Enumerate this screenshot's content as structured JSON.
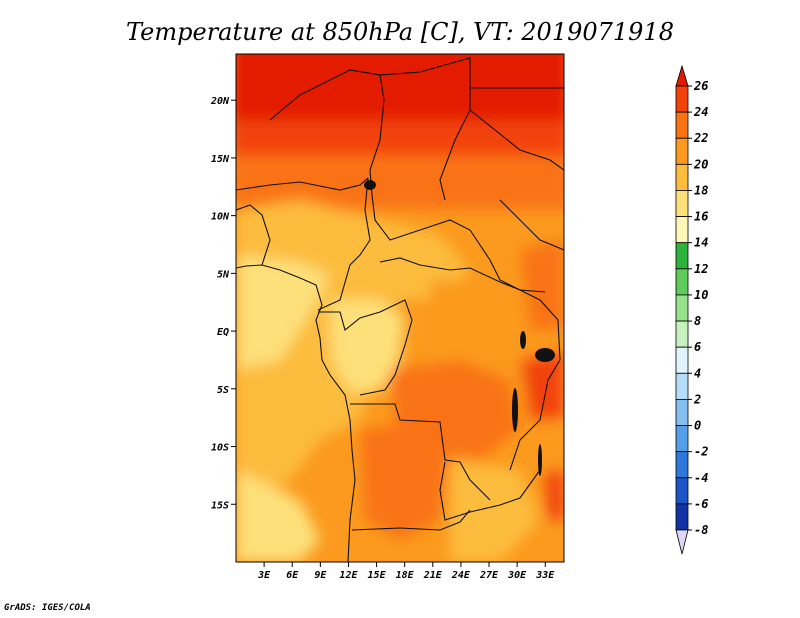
{
  "title": "Temperature at 850hPa [C], VT: 2019071918",
  "credit": "GrADS: IGES/COLA",
  "map": {
    "variable": "Temperature at 850hPa",
    "units": "C",
    "valid_time": "2019071918",
    "lon_range": [
      0,
      35
    ],
    "lat_range": [
      -20,
      24
    ],
    "lat_ticks": [
      {
        "value": 20,
        "label": "20N"
      },
      {
        "value": 15,
        "label": "15N"
      },
      {
        "value": 10,
        "label": "10N"
      },
      {
        "value": 5,
        "label": "5N"
      },
      {
        "value": 0,
        "label": "EQ"
      },
      {
        "value": -5,
        "label": "5S"
      },
      {
        "value": -10,
        "label": "10S"
      },
      {
        "value": -15,
        "label": "15S"
      }
    ],
    "lon_ticks": [
      {
        "value": 3,
        "label": "3E"
      },
      {
        "value": 6,
        "label": "6E"
      },
      {
        "value": 9,
        "label": "9E"
      },
      {
        "value": 12,
        "label": "12E"
      },
      {
        "value": 15,
        "label": "15E"
      },
      {
        "value": 18,
        "label": "18E"
      },
      {
        "value": 21,
        "label": "21E"
      },
      {
        "value": 24,
        "label": "24E"
      },
      {
        "value": 27,
        "label": "27E"
      },
      {
        "value": 30,
        "label": "30E"
      },
      {
        "value": 33,
        "label": "33E"
      }
    ],
    "bands": [
      {
        "lat_top": 24,
        "lat_bottom": 16.5,
        "bin": "24-26"
      },
      {
        "lat_top": 16.5,
        "lat_bottom": 13.5,
        "bin": "22-24"
      },
      {
        "lat_top": 13.5,
        "lat_bottom": 10.5,
        "bin": "20-22"
      }
    ]
  },
  "colorbar": {
    "levels": [
      26,
      24,
      22,
      20,
      18,
      16,
      14,
      12,
      10,
      8,
      6,
      4,
      2,
      0,
      -2,
      -4,
      -6,
      -8
    ],
    "labels": [
      "26",
      "24",
      "22",
      "20",
      "18",
      "16",
      "14",
      "12",
      "10",
      "8",
      "6",
      "4",
      "2",
      "0",
      "-2",
      "-4",
      "-6",
      "-8"
    ],
    "colors_top_to_bottom": [
      "#e31a00",
      "#f2420a",
      "#f97313",
      "#fb9a1e",
      "#fcbc3c",
      "#fde07a",
      "#fff7b8",
      "#2db23c",
      "#5fcc5a",
      "#97e38c",
      "#c7f2c0",
      "#dff4fc",
      "#b6ddf7",
      "#86c0f0",
      "#559ee8",
      "#2f78db",
      "#1d55c6",
      "#1233a6",
      "#071477",
      "#dcd8f3"
    ]
  },
  "colors": {
    "t24_26": "#e31a00",
    "t22_24": "#f2420a",
    "t20_22": "#f97313",
    "t18_20": "#fb9a1e",
    "t16_18": "#fcbc3c",
    "t14_16": "#fde07a"
  }
}
